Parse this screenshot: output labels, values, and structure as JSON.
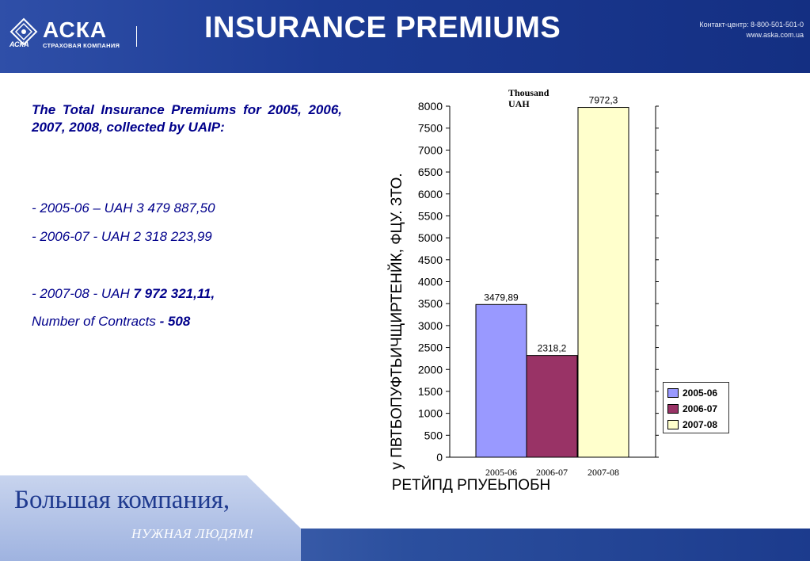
{
  "header": {
    "logo_name": "АСКА",
    "logo_sub": "СТРАХОВАЯ КОМПАНИЯ",
    "logo_ribbon": "АСКА",
    "title": "INSURANCE PREMIUMS",
    "contact": "Контакт-центр:  8-800-501-501-0",
    "site": "www.aska.com.ua"
  },
  "body": {
    "intro": "The Total Insurance Premiums for 2005, 2006, 2007, 2008, collected by UAIP:",
    "line1": " -  2005-06 – UAH 3 479 887,50",
    "line2": "-  2006-07 - UAH 2 318 223,99",
    "line3_prefix": "- 2007-08 - UAH ",
    "line3_bold": "7 972 321,11,",
    "line4_prefix": "Number of Contracts ",
    "line4_bold": "-  508"
  },
  "chart_data": {
    "type": "bar",
    "unit_label": "Thousand UAH",
    "categories": [
      "2005-06",
      "2006-07",
      "2007-08"
    ],
    "values": [
      3479.89,
      2318.2,
      7972.3
    ],
    "value_labels": [
      "3479,89",
      "2318,2",
      "7972,3"
    ],
    "colors": [
      "#9999ff",
      "#993366",
      "#ffffcc"
    ],
    "ylim": [
      0,
      8000
    ],
    "yticks": [
      0,
      500,
      1000,
      1500,
      2000,
      2500,
      3000,
      3500,
      4000,
      4500,
      5000,
      5500,
      6000,
      6500,
      7000,
      7500,
      8000
    ],
    "ylabel": "у ПВТБОПУФТЬИЧЩИРТЕНЙК, ФЦУ. ЗТО.",
    "xlabel": "РЕТЙПД  РПУЕЬПОБН",
    "legend": [
      "2005-06",
      "2006-07",
      "2007-08"
    ],
    "legend_position": "right"
  },
  "footer": {
    "slogan_main": "Большая компания,",
    "slogan_sub": "НУЖНАЯ  ЛЮДЯМ!"
  }
}
